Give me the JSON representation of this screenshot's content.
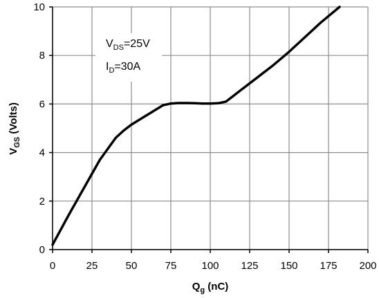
{
  "chart_data": {
    "type": "line",
    "xlabel": {
      "main": "Q",
      "sub": "g",
      "rest": " (nC)"
    },
    "ylabel": {
      "main": "V",
      "sub": "GS",
      "rest": " (Volts)"
    },
    "xlim": [
      0,
      200
    ],
    "ylim": [
      0,
      10
    ],
    "x_ticks": [
      "0",
      "25",
      "50",
      "75",
      "100",
      "125",
      "150",
      "175",
      "200"
    ],
    "y_ticks": [
      "0",
      "2",
      "4",
      "6",
      "8",
      "10"
    ],
    "grid": true,
    "annotations": [
      {
        "main": "V",
        "sub": "DS",
        "rest": "=25V"
      },
      {
        "main": "I",
        "sub": "D",
        "rest": "=30A"
      }
    ],
    "series": [
      {
        "color": "#000000",
        "x": [
          0,
          10,
          20,
          30,
          40,
          45,
          50,
          55,
          60,
          65,
          70,
          75,
          80,
          85,
          90,
          95,
          100,
          105,
          110,
          115,
          120,
          130,
          140,
          150,
          160,
          170,
          182
        ],
        "y": [
          0.2,
          1.4,
          2.55,
          3.7,
          4.6,
          4.9,
          5.15,
          5.35,
          5.55,
          5.75,
          5.95,
          6.02,
          6.04,
          6.04,
          6.03,
          6.02,
          6.02,
          6.03,
          6.1,
          6.35,
          6.6,
          7.1,
          7.6,
          8.15,
          8.75,
          9.35,
          10.0
        ]
      }
    ]
  }
}
